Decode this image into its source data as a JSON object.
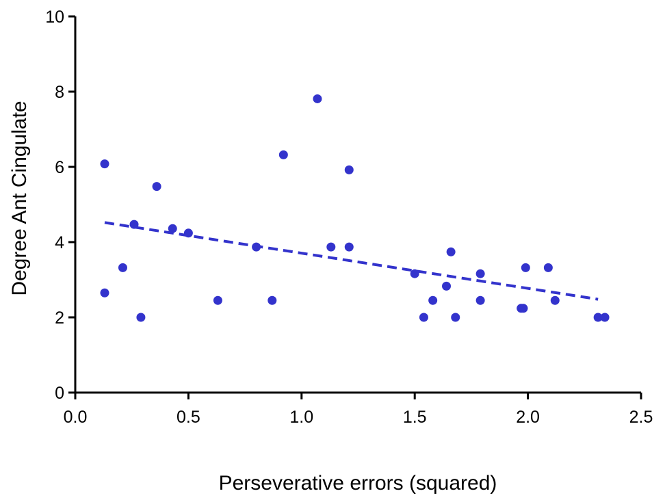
{
  "chart_data": {
    "type": "scatter",
    "title": "",
    "xlabel": "Perseverative errors (squared)",
    "ylabel": "Degree Ant Cingulate",
    "xlim": [
      0,
      2.5
    ],
    "ylim": [
      0,
      10
    ],
    "x_ticks": [
      "0.0",
      "0.5",
      "1.0",
      "1.5",
      "2.0",
      "2.5"
    ],
    "y_ticks": [
      "0",
      "2",
      "4",
      "6",
      "8",
      "10"
    ],
    "grid": false,
    "legend": "none",
    "series": [
      {
        "color": "#3333cc",
        "marker": "circle",
        "points": [
          {
            "x": 0.13,
            "y": 2.65
          },
          {
            "x": 0.13,
            "y": 6.08
          },
          {
            "x": 0.21,
            "y": 3.32
          },
          {
            "x": 0.26,
            "y": 4.47
          },
          {
            "x": 0.29,
            "y": 2.0
          },
          {
            "x": 0.36,
            "y": 5.48
          },
          {
            "x": 0.43,
            "y": 4.36
          },
          {
            "x": 0.5,
            "y": 4.24
          },
          {
            "x": 0.63,
            "y": 2.45
          },
          {
            "x": 0.8,
            "y": 3.87
          },
          {
            "x": 0.87,
            "y": 2.45
          },
          {
            "x": 0.92,
            "y": 6.32
          },
          {
            "x": 1.07,
            "y": 7.81
          },
          {
            "x": 1.13,
            "y": 3.87
          },
          {
            "x": 1.21,
            "y": 3.87
          },
          {
            "x": 1.21,
            "y": 5.92
          },
          {
            "x": 1.5,
            "y": 3.16
          },
          {
            "x": 1.54,
            "y": 2.0
          },
          {
            "x": 1.58,
            "y": 2.45
          },
          {
            "x": 1.64,
            "y": 2.83
          },
          {
            "x": 1.66,
            "y": 3.74
          },
          {
            "x": 1.68,
            "y": 2.0
          },
          {
            "x": 1.79,
            "y": 3.16
          },
          {
            "x": 1.79,
            "y": 2.45
          },
          {
            "x": 1.97,
            "y": 2.24
          },
          {
            "x": 1.98,
            "y": 2.24
          },
          {
            "x": 1.99,
            "y": 3.32
          },
          {
            "x": 2.09,
            "y": 3.32
          },
          {
            "x": 2.12,
            "y": 2.45
          },
          {
            "x": 2.31,
            "y": 2.0
          },
          {
            "x": 2.34,
            "y": 2.0
          }
        ]
      }
    ],
    "trendline": {
      "color": "#3333cc",
      "style": "dashed",
      "x": [
        0.13,
        2.31
      ],
      "y": [
        4.52,
        2.48
      ]
    }
  }
}
